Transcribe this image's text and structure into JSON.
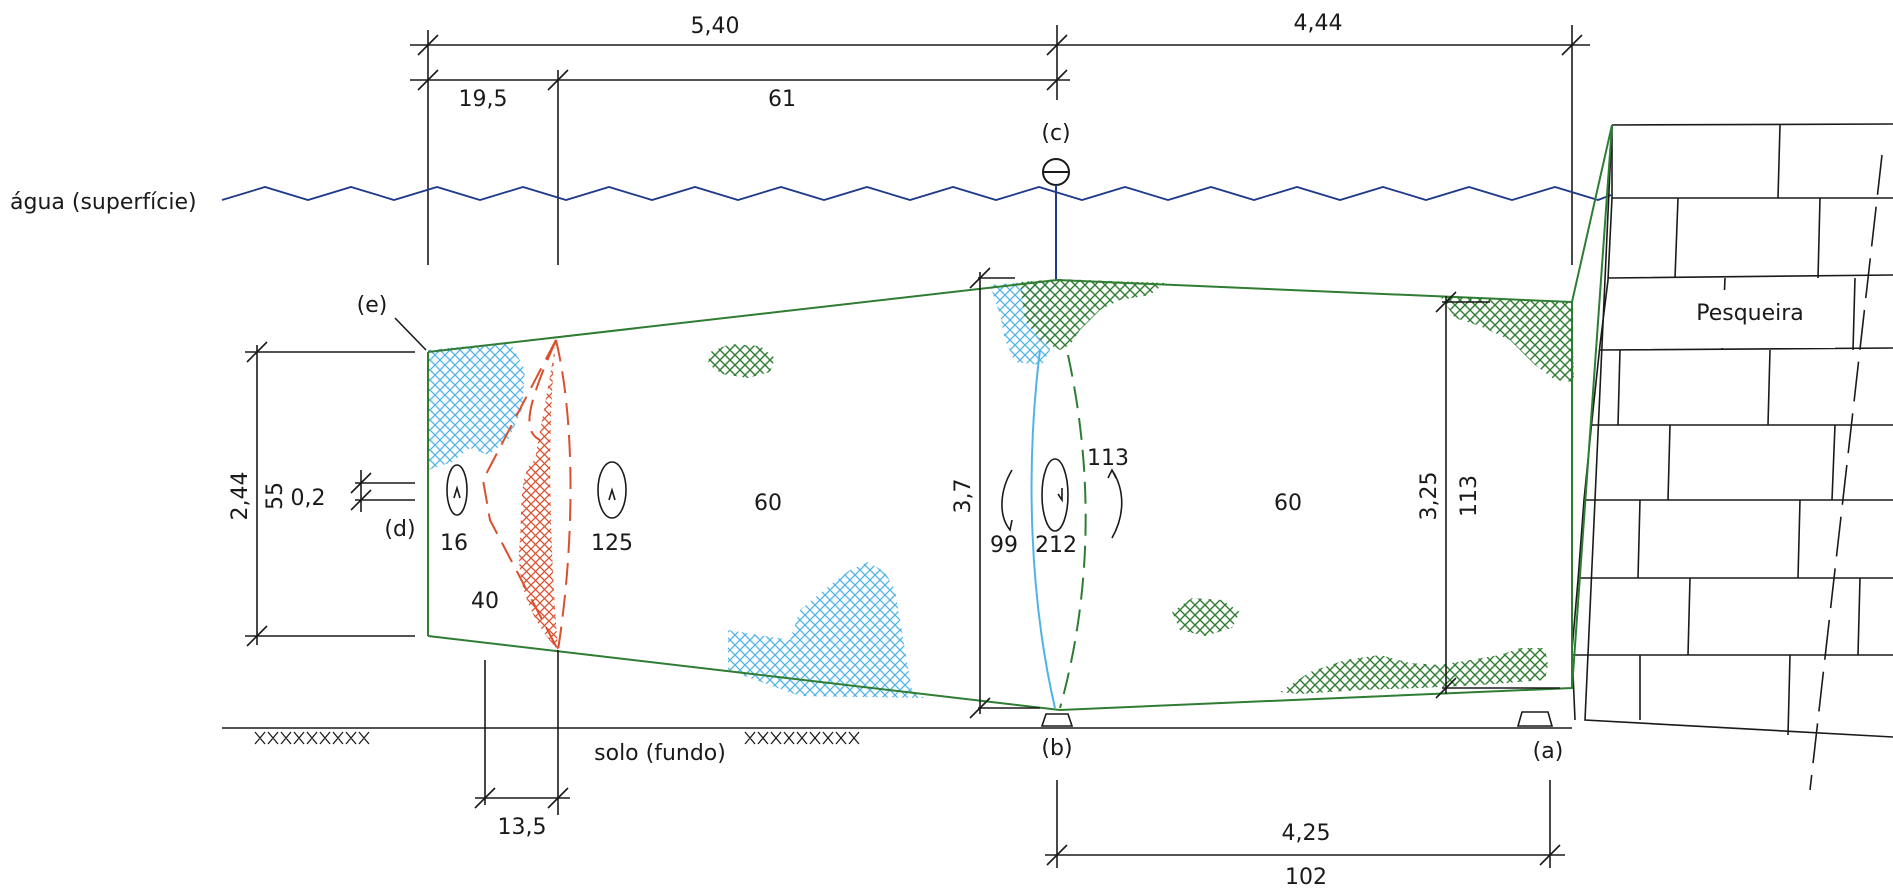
{
  "labels": {
    "water_surface": "água (superfície)",
    "ground_bottom": "solo (fundo)",
    "pesqueira": "Pesqueira",
    "point_a": "(a)",
    "point_b": "(b)",
    "point_c": "(c)",
    "point_d": "(d)",
    "point_e": "(e)"
  },
  "dimensions": {
    "top_left_span": "5,40",
    "top_right_span": "4,44",
    "sub_span_left": "19,5",
    "sub_span_right": "61",
    "left_height": "2,44",
    "left_height_inner": "55",
    "small_gap": "0,2",
    "middle_height": "3,7",
    "right_height": "3,25",
    "right_height_inner": "113",
    "bottom_small": "13,5",
    "bottom_right_span": "4,25",
    "bottom_right_inner": "102"
  },
  "section_values": {
    "mouth_rotation": "16",
    "cone_rotation": "125",
    "cone_value": "40",
    "left_body": "60",
    "right_body": "60",
    "mid_rot_left": "99",
    "mid_rot_center": "212",
    "mid_rot_right": "113"
  },
  "colors": {
    "water": "#1f3a8a",
    "net": "#2e7d32",
    "algae_green": "#2e7d32",
    "silt_blue": "#4fb3e8",
    "cone_red": "#d9502f"
  }
}
